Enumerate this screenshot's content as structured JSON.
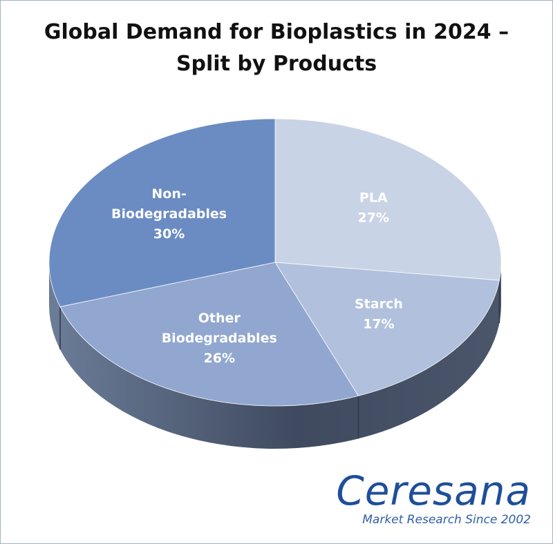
{
  "chart_data": {
    "type": "pie",
    "title_lines": [
      "Global Demand for Bioplastics in 2024 –",
      "Split by Products"
    ],
    "slices": [
      {
        "label_lines": [
          "PLA"
        ],
        "value": 27,
        "value_label": "27%",
        "color": "#c9d3e6"
      },
      {
        "label_lines": [
          "Starch"
        ],
        "value": 17,
        "value_label": "17%",
        "color": "#b1c0dd"
      },
      {
        "label_lines": [
          "Other",
          "Biodegradables"
        ],
        "value": 26,
        "value_label": "26%",
        "color": "#91a7d0"
      },
      {
        "label_lines": [
          "Non-",
          "Biodegradables"
        ],
        "value": 30,
        "value_label": "30%",
        "color": "#6b8cc3"
      }
    ]
  },
  "logo": {
    "name": "Ceresana",
    "tagline": "Market Research Since 2002"
  }
}
